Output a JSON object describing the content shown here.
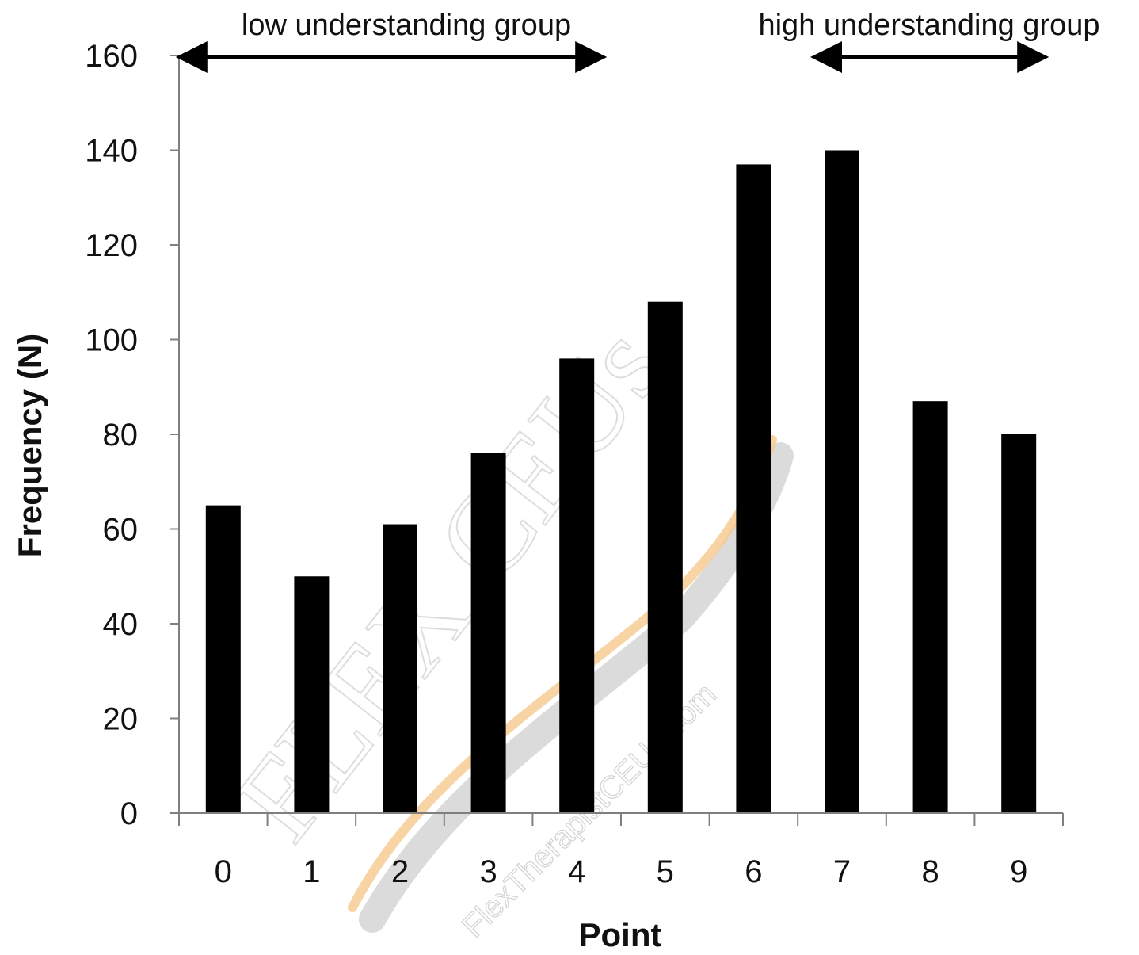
{
  "chart_data": {
    "type": "bar",
    "title": "",
    "xlabel": "Point",
    "ylabel": "Frequency (N)",
    "categories": [
      "0",
      "1",
      "2",
      "3",
      "4",
      "5",
      "6",
      "7",
      "8",
      "9"
    ],
    "values": [
      65,
      50,
      61,
      76,
      96,
      108,
      137,
      140,
      87,
      80
    ],
    "ylim": [
      0,
      160
    ],
    "yticks": [
      "0",
      "20",
      "40",
      "60",
      "80",
      "100",
      "120",
      "140",
      "160"
    ],
    "grid": false,
    "legend": "none",
    "bar_color": "#000000",
    "annotations": [
      {
        "text": "low understanding group",
        "arrow_from": "0",
        "arrow_to": "4"
      },
      {
        "text": "high understanding group",
        "arrow_from": "7",
        "arrow_to": "9"
      }
    ]
  },
  "watermark": {
    "brand": "FLEX CEUs",
    "url": "FlexTherapistCEUs.com",
    "stroke_colors": [
      "#f6c98f",
      "#bdbdbd"
    ]
  }
}
